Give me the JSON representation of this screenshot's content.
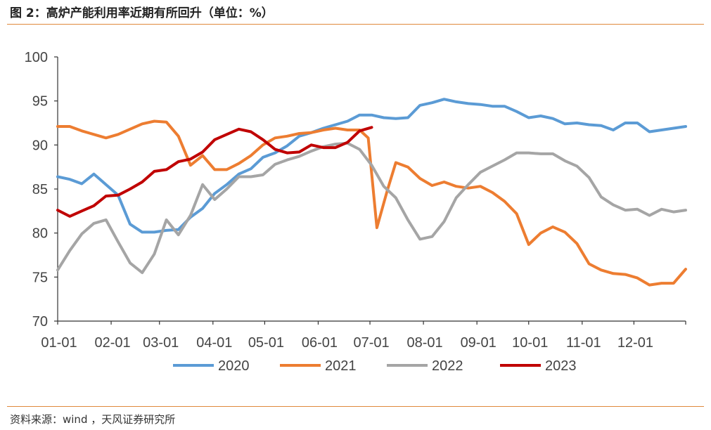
{
  "header": {
    "title": "图 2：高炉产能利用率近期有所回升（单位：%）"
  },
  "footer": {
    "source": "资料来源：wind ，天风证券研究所"
  },
  "chart_data": {
    "type": "line",
    "title": "图 2：高炉产能利用率近期有所回升（单位：%）",
    "xlabel": "",
    "ylabel": "",
    "ylim": [
      70,
      100
    ],
    "yticks": [
      "70",
      "75",
      "80",
      "85",
      "90",
      "95",
      "100"
    ],
    "xticks": [
      "01-01",
      "02-01",
      "03-01",
      "04-01",
      "05-01",
      "06-01",
      "07-01",
      "08-01",
      "09-01",
      "10-01",
      "11-01",
      "12-01"
    ],
    "xtick_days": [
      0,
      31,
      59,
      90,
      120,
      151,
      181,
      212,
      243,
      273,
      304,
      334
    ],
    "x_range_days": [
      0,
      364
    ],
    "grid": false,
    "legend_position": "bottom",
    "series": [
      {
        "name": "2020",
        "color": "#5b9bd5",
        "points": [
          [
            0,
            86.4
          ],
          [
            7,
            86.1
          ],
          [
            14,
            85.6
          ],
          [
            21,
            86.7
          ],
          [
            28,
            85.5
          ],
          [
            35,
            84.3
          ],
          [
            42,
            81.0
          ],
          [
            49,
            80.1
          ],
          [
            56,
            80.1
          ],
          [
            63,
            80.3
          ],
          [
            70,
            80.4
          ],
          [
            77,
            81.8
          ],
          [
            84,
            82.8
          ],
          [
            91,
            84.5
          ],
          [
            98,
            85.5
          ],
          [
            105,
            86.7
          ],
          [
            112,
            87.3
          ],
          [
            119,
            88.6
          ],
          [
            126,
            89.1
          ],
          [
            133,
            89.9
          ],
          [
            140,
            91.0
          ],
          [
            147,
            91.4
          ],
          [
            154,
            91.9
          ],
          [
            161,
            92.3
          ],
          [
            168,
            92.7
          ],
          [
            175,
            93.4
          ],
          [
            182,
            93.4
          ],
          [
            189,
            93.1
          ],
          [
            196,
            93.0
          ],
          [
            203,
            93.1
          ],
          [
            210,
            94.5
          ],
          [
            217,
            94.8
          ],
          [
            224,
            95.2
          ],
          [
            231,
            94.9
          ],
          [
            238,
            94.7
          ],
          [
            245,
            94.6
          ],
          [
            252,
            94.4
          ],
          [
            259,
            94.4
          ],
          [
            266,
            93.8
          ],
          [
            273,
            93.1
          ],
          [
            280,
            93.3
          ],
          [
            287,
            93.0
          ],
          [
            294,
            92.4
          ],
          [
            301,
            92.5
          ],
          [
            308,
            92.3
          ],
          [
            315,
            92.2
          ],
          [
            322,
            91.7
          ],
          [
            329,
            92.5
          ],
          [
            336,
            92.5
          ],
          [
            343,
            91.5
          ],
          [
            350,
            91.7
          ],
          [
            357,
            91.9
          ],
          [
            364,
            92.1
          ]
        ]
      },
      {
        "name": "2021",
        "color": "#ed7d31",
        "points": [
          [
            0,
            92.1
          ],
          [
            7,
            92.1
          ],
          [
            14,
            91.6
          ],
          [
            21,
            91.2
          ],
          [
            28,
            90.8
          ],
          [
            35,
            91.2
          ],
          [
            42,
            91.8
          ],
          [
            49,
            92.4
          ],
          [
            56,
            92.7
          ],
          [
            63,
            92.6
          ],
          [
            70,
            91.0
          ],
          [
            77,
            87.7
          ],
          [
            84,
            88.8
          ],
          [
            91,
            87.2
          ],
          [
            98,
            87.2
          ],
          [
            105,
            87.9
          ],
          [
            112,
            88.8
          ],
          [
            119,
            90.0
          ],
          [
            126,
            90.8
          ],
          [
            133,
            91.0
          ],
          [
            140,
            91.3
          ],
          [
            147,
            91.4
          ],
          [
            154,
            91.7
          ],
          [
            161,
            91.9
          ],
          [
            168,
            91.7
          ],
          [
            175,
            91.7
          ],
          [
            180,
            90.8
          ],
          [
            185,
            80.6
          ],
          [
            191,
            84.8
          ],
          [
            196,
            88.0
          ],
          [
            203,
            87.5
          ],
          [
            210,
            86.2
          ],
          [
            217,
            85.4
          ],
          [
            224,
            85.8
          ],
          [
            231,
            85.3
          ],
          [
            238,
            85.1
          ],
          [
            245,
            85.3
          ],
          [
            252,
            84.6
          ],
          [
            259,
            83.6
          ],
          [
            266,
            82.2
          ],
          [
            273,
            78.7
          ],
          [
            280,
            80.0
          ],
          [
            287,
            80.7
          ],
          [
            294,
            80.1
          ],
          [
            301,
            78.8
          ],
          [
            308,
            76.5
          ],
          [
            315,
            75.8
          ],
          [
            322,
            75.4
          ],
          [
            329,
            75.3
          ],
          [
            336,
            74.9
          ],
          [
            343,
            74.1
          ],
          [
            350,
            74.3
          ],
          [
            357,
            74.3
          ],
          [
            364,
            75.9
          ]
        ]
      },
      {
        "name": "2022",
        "color": "#a5a5a5",
        "points": [
          [
            0,
            75.8
          ],
          [
            7,
            78.0
          ],
          [
            14,
            79.9
          ],
          [
            21,
            81.1
          ],
          [
            28,
            81.5
          ],
          [
            35,
            79.0
          ],
          [
            42,
            76.6
          ],
          [
            49,
            75.5
          ],
          [
            56,
            77.6
          ],
          [
            63,
            81.5
          ],
          [
            70,
            79.8
          ],
          [
            77,
            82.0
          ],
          [
            84,
            85.5
          ],
          [
            91,
            83.8
          ],
          [
            98,
            85.0
          ],
          [
            105,
            86.4
          ],
          [
            112,
            86.4
          ],
          [
            119,
            86.6
          ],
          [
            126,
            87.8
          ],
          [
            133,
            88.3
          ],
          [
            140,
            88.7
          ],
          [
            147,
            89.3
          ],
          [
            154,
            89.8
          ],
          [
            161,
            90.1
          ],
          [
            168,
            90.2
          ],
          [
            175,
            89.5
          ],
          [
            182,
            87.7
          ],
          [
            189,
            85.3
          ],
          [
            196,
            84.0
          ],
          [
            203,
            81.5
          ],
          [
            210,
            79.3
          ],
          [
            217,
            79.6
          ],
          [
            224,
            81.3
          ],
          [
            231,
            84.0
          ],
          [
            238,
            85.5
          ],
          [
            245,
            86.9
          ],
          [
            252,
            87.6
          ],
          [
            259,
            88.3
          ],
          [
            266,
            89.1
          ],
          [
            273,
            89.1
          ],
          [
            280,
            89.0
          ],
          [
            287,
            89.0
          ],
          [
            294,
            88.2
          ],
          [
            301,
            87.6
          ],
          [
            308,
            86.3
          ],
          [
            315,
            84.1
          ],
          [
            322,
            83.2
          ],
          [
            329,
            82.6
          ],
          [
            336,
            82.7
          ],
          [
            343,
            82.0
          ],
          [
            350,
            82.7
          ],
          [
            357,
            82.4
          ],
          [
            364,
            82.6
          ]
        ]
      },
      {
        "name": "2023",
        "color": "#c00000",
        "points": [
          [
            0,
            82.6
          ],
          [
            7,
            81.9
          ],
          [
            14,
            82.5
          ],
          [
            21,
            83.1
          ],
          [
            28,
            84.2
          ],
          [
            35,
            84.3
          ],
          [
            42,
            85.0
          ],
          [
            49,
            85.8
          ],
          [
            56,
            87.0
          ],
          [
            63,
            87.2
          ],
          [
            70,
            88.1
          ],
          [
            77,
            88.4
          ],
          [
            84,
            89.2
          ],
          [
            91,
            90.6
          ],
          [
            98,
            91.2
          ],
          [
            105,
            91.8
          ],
          [
            112,
            91.5
          ],
          [
            119,
            90.6
          ],
          [
            126,
            89.5
          ],
          [
            133,
            89.1
          ],
          [
            140,
            89.2
          ],
          [
            147,
            90.0
          ],
          [
            154,
            89.7
          ],
          [
            161,
            89.7
          ],
          [
            168,
            90.3
          ],
          [
            175,
            91.6
          ],
          [
            182,
            92.0
          ]
        ]
      }
    ]
  }
}
